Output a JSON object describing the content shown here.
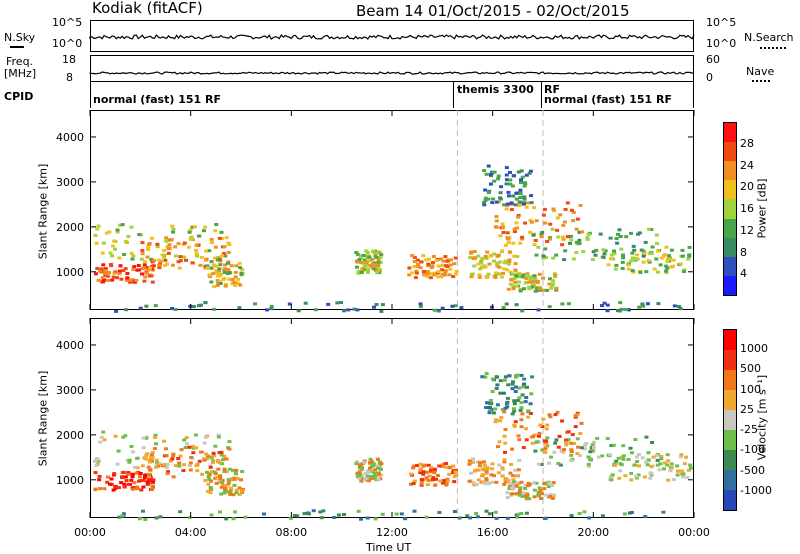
{
  "header": {
    "title_left": "Kodiak (fitACF)",
    "title_right": "Beam 14   01/Oct/2015 - 02/Oct/2015"
  },
  "noise_panel": {
    "left_label": "N.Sky",
    "right_label": "N.Search",
    "left_ticks": [
      "10^5",
      "10^0"
    ],
    "right_ticks": [
      "10^5",
      "10^0"
    ]
  },
  "freq_panel": {
    "left_label_1": "Freq.",
    "left_label_2": "[MHz]",
    "right_label": "Nave",
    "left_ticks": [
      "18",
      "8"
    ],
    "right_ticks": [
      "60",
      "0"
    ]
  },
  "cpid": {
    "label": "CPID",
    "segments": [
      {
        "text": "normal (fast) 151 RF",
        "start_hour": 0
      },
      {
        "text": "themis 3300",
        "start_hour": 14.6
      },
      {
        "text": "RF",
        "start_hour": 18.0
      },
      {
        "text": "normal (fast) 151 RF",
        "start_hour": 18.0
      }
    ]
  },
  "colors": {
    "power_scale": [
      "#1a1aff",
      "#2f4fbf",
      "#3a8a64",
      "#4aa54a",
      "#9fd43a",
      "#f0c020",
      "#f09020",
      "#f04a10",
      "#ff1010"
    ],
    "velocity_scale": [
      "#2848b8",
      "#3070a0",
      "#3c8a50",
      "#6cc04a",
      "#c8c8c0",
      "#f0a830",
      "#f07818",
      "#f03010",
      "#ff0000"
    ]
  },
  "chart_data": [
    {
      "type": "heatmap",
      "name": "power",
      "ylabel": "Slant Range [km]",
      "xlabel": "",
      "y_ticks": [
        1000,
        2000,
        3000,
        4000
      ],
      "ylim": [
        150,
        4600
      ],
      "xlim": [
        0,
        24
      ],
      "colorbar": {
        "label": "Power [dB]",
        "ticks": [
          "28",
          "24",
          "20",
          "16",
          "12",
          "8",
          "4"
        ],
        "range": [
          0,
          32
        ]
      }
    },
    {
      "type": "heatmap",
      "name": "velocity",
      "ylabel": "Slant Range [km]",
      "xlabel": "Time UT",
      "y_ticks": [
        1000,
        2000,
        3000,
        4000
      ],
      "ylim": [
        150,
        4600
      ],
      "xlim": [
        0,
        24
      ],
      "x_ticks": [
        "00:00",
        "04:00",
        "08:00",
        "12:00",
        "16:00",
        "20:00",
        "00:00"
      ],
      "colorbar": {
        "label": "Velocity [m s⁻¹]",
        "ticks": [
          "1000",
          "500",
          "100",
          "25",
          "-25",
          "-100",
          "-500",
          "-1000"
        ]
      }
    }
  ]
}
